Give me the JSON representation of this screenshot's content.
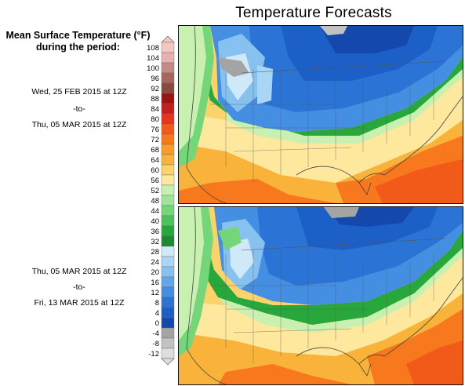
{
  "title": "Temperature Forecasts",
  "legend": {
    "heading_line1": "Mean Surface Temperature (°F)",
    "heading_line2": "during the period:",
    "ticks": [
      108,
      104,
      100,
      96,
      92,
      88,
      84,
      80,
      76,
      72,
      68,
      64,
      60,
      56,
      52,
      48,
      44,
      40,
      36,
      32,
      28,
      24,
      20,
      16,
      12,
      8,
      4,
      0,
      -4,
      -8,
      -12
    ],
    "colors": [
      "#f4c6c0",
      "#e8b0ae",
      "#c48a84",
      "#a6675f",
      "#8a4a42",
      "#9a1414",
      "#c41f1f",
      "#e8331e",
      "#f25a1a",
      "#f7781d",
      "#f99a2a",
      "#f9b23a",
      "#fbd36a",
      "#fde89e",
      "#c8f0b0",
      "#9fe49a",
      "#74d678",
      "#4fc25c",
      "#28a83c",
      "#1c8a30",
      "#cfe9f8",
      "#a9d6f5",
      "#86c1f0",
      "#62a7ea",
      "#458fe2",
      "#2b74d6",
      "#1c5fc6",
      "#1448ad",
      "#a4a4a4",
      "#c2c2c2",
      "#dedede"
    ]
  },
  "periods": [
    {
      "start": "Wed, 25 FEB 2015 at 12Z",
      "sep": "-to-",
      "end": "Thu, 05 MAR 2015 at 12Z"
    },
    {
      "start": "Thu, 05 MAR 2015 at 12Z",
      "sep": "-to-",
      "end": "Fri, 13 MAR 2015 at 12Z"
    }
  ]
}
